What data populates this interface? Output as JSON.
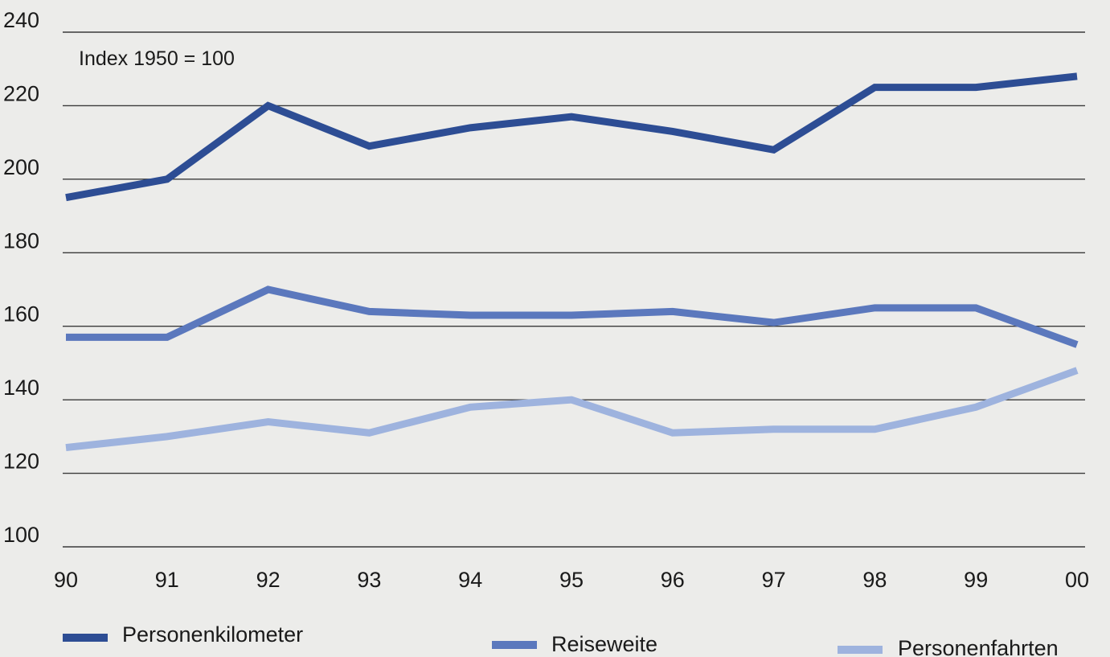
{
  "chart_data": {
    "type": "line",
    "title": "",
    "xlabel": "",
    "ylabel": "",
    "annotation": "Index 1950 = 100",
    "categories": [
      "90",
      "91",
      "92",
      "93",
      "94",
      "95",
      "96",
      "97",
      "98",
      "99",
      "00"
    ],
    "y_ticks": [
      "100",
      "120",
      "140",
      "160",
      "180",
      "200",
      "220",
      "240"
    ],
    "ylim": [
      100,
      240
    ],
    "grid": true,
    "legend_position": "bottom",
    "series": [
      {
        "name": "Personenkilometer",
        "color": "#2d4d94",
        "values": [
          195,
          200,
          220,
          209,
          214,
          217,
          213,
          208,
          225,
          225,
          228
        ]
      },
      {
        "name": "Reiseweite",
        "color": "#5b78bd",
        "values": [
          157,
          157,
          170,
          164,
          163,
          163,
          164,
          161,
          165,
          165,
          155
        ]
      },
      {
        "name": "Personenfahrten",
        "color": "#9eb3de",
        "values": [
          127,
          130,
          134,
          131,
          138,
          140,
          131,
          132,
          132,
          138,
          148
        ]
      }
    ]
  }
}
